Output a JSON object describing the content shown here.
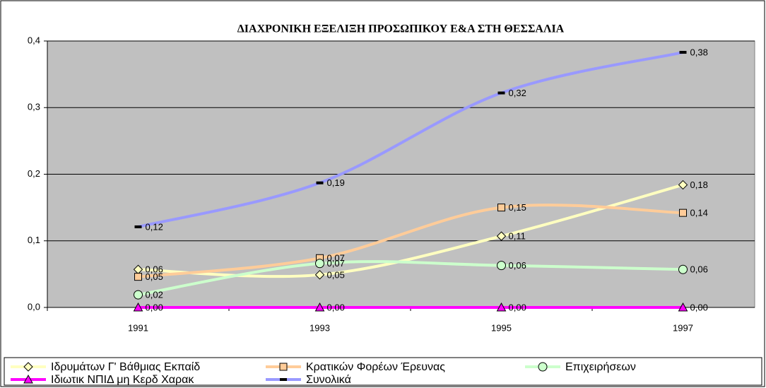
{
  "chart_data": {
    "type": "line",
    "title": "ΔΙΑΧΡΟΝΙΚΗ ΕΞΕΛΙΞΗ ΠΡΟΣΩΠΙΚΟΥ Ε&Α ΣΤΗ ΘΕΣΣΑΛΙΑ",
    "categories": [
      "1991",
      "1993",
      "1995",
      "1997"
    ],
    "ylim": [
      0,
      0.4
    ],
    "yticks": [
      {
        "value": 0,
        "label": "0,0"
      },
      {
        "value": 0.1,
        "label": "0,1"
      },
      {
        "value": 0.2,
        "label": "0,2"
      },
      {
        "value": 0.3,
        "label": "0,3"
      },
      {
        "value": 0.4,
        "label": "0,4"
      }
    ],
    "grid": true,
    "legend": "bottom",
    "series": [
      {
        "name": "Ιδρυμάτων Γ' Βάθμιας Εκπαίδ",
        "color": "#ffffc0",
        "marker": "diamond",
        "values": [
          0.057,
          0.049,
          0.107,
          0.184
        ],
        "value_labels": [
          "0,06",
          "0,05",
          "0,11",
          "0,18"
        ]
      },
      {
        "name": "Κρατικών Φορέων Έρευνας",
        "color": "#ffcc99",
        "marker": "square",
        "values": [
          0.046,
          0.074,
          0.15,
          0.142
        ],
        "value_labels": [
          "0,05",
          "0,07",
          "0,15",
          "0,14"
        ]
      },
      {
        "name": "Επιχειρήσεων",
        "color": "#ccffcc",
        "marker": "circle",
        "values": [
          0.019,
          0.066,
          0.063,
          0.057
        ],
        "value_labels": [
          "0,02",
          "0,07",
          "0,06",
          "0,06"
        ]
      },
      {
        "name": "Ιδιωτικ ΝΠΙΔ μη Κερδ Χαρακ",
        "color": "#ff00ff",
        "marker": "triangle",
        "values": [
          0,
          0,
          0,
          0
        ],
        "value_labels": [
          "0,00",
          "0,00",
          "0,00",
          "0,00"
        ]
      },
      {
        "name": "Συνολικά",
        "color": "#9999ff",
        "marker": "dash",
        "values": [
          0.121,
          0.187,
          0.322,
          0.383
        ],
        "value_labels": [
          "0,12",
          "0,19",
          "0,32",
          "0,38"
        ]
      }
    ]
  }
}
